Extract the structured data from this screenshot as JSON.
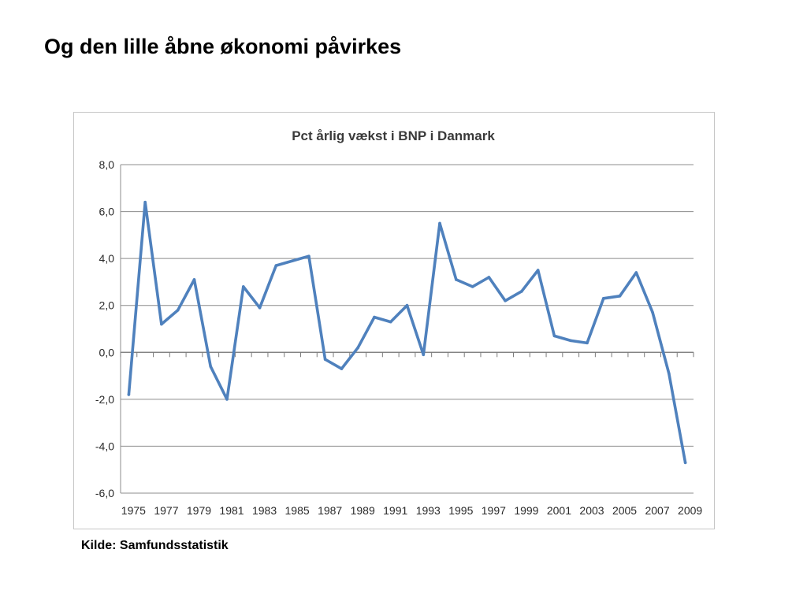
{
  "slide": {
    "title": "Og den lille åbne økonomi påvirkes",
    "source": "Kilde: Samfundsstatistik"
  },
  "chart_data": {
    "type": "line",
    "title": "Pct årlig vækst i BNP i Danmark",
    "xlabel": "",
    "ylabel": "",
    "ylim": [
      -6,
      8
    ],
    "ytick_values": [
      8,
      6,
      4,
      2,
      0,
      -2,
      -4,
      -6
    ],
    "ytick_labels": [
      "8,0",
      "6,0",
      "4,0",
      "2,0",
      "0,0",
      "-2,0",
      "-4,0",
      "-6,0"
    ],
    "xtick_labels": [
      "1975",
      "1977",
      "1979",
      "1981",
      "1983",
      "1985",
      "1987",
      "1989",
      "1991",
      "1993",
      "1995",
      "1997",
      "1999",
      "2001",
      "2003",
      "2005",
      "2007",
      "2009"
    ],
    "x": [
      1975,
      1976,
      1977,
      1978,
      1979,
      1980,
      1981,
      1982,
      1983,
      1984,
      1985,
      1986,
      1987,
      1988,
      1989,
      1990,
      1991,
      1992,
      1993,
      1994,
      1995,
      1996,
      1997,
      1998,
      1999,
      2000,
      2001,
      2002,
      2003,
      2004,
      2005,
      2006,
      2007,
      2008,
      2009
    ],
    "series": [
      {
        "values": [
          -1.8,
          6.4,
          1.2,
          1.8,
          3.1,
          -0.6,
          -2.0,
          2.8,
          1.9,
          3.7,
          3.9,
          4.1,
          -0.3,
          -0.7,
          0.2,
          1.5,
          1.3,
          2.0,
          -0.1,
          5.5,
          3.1,
          2.8,
          3.2,
          2.2,
          2.6,
          3.5,
          0.7,
          0.5,
          0.4,
          2.3,
          2.4,
          3.4,
          1.7,
          -0.9,
          -4.7
        ],
        "color": "#4f81bd"
      }
    ],
    "grid": true,
    "legend": "none"
  }
}
